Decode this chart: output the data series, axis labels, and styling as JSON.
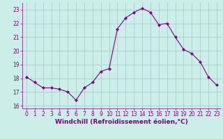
{
  "x": [
    0,
    1,
    2,
    3,
    4,
    5,
    6,
    7,
    8,
    9,
    10,
    11,
    12,
    13,
    14,
    15,
    16,
    17,
    18,
    19,
    20,
    21,
    22,
    23
  ],
  "y": [
    18.1,
    17.7,
    17.3,
    17.3,
    17.2,
    17.0,
    16.4,
    17.3,
    17.7,
    18.5,
    18.7,
    21.6,
    22.4,
    22.8,
    23.1,
    22.8,
    21.9,
    22.0,
    21.0,
    20.1,
    19.8,
    19.2,
    18.1,
    17.5
  ],
  "line_color": "#800080",
  "marker": "D",
  "marker_size": 2,
  "bg_color": "#cceee8",
  "grid_color": "#aacccc",
  "xlabel": "Windchill (Refroidissement éolien,°C)",
  "xlabel_color": "#800080",
  "tick_color": "#800080",
  "ylim": [
    15.8,
    23.5
  ],
  "yticks": [
    16,
    17,
    18,
    19,
    20,
    21,
    22,
    23
  ],
  "xlim": [
    -0.5,
    23.5
  ],
  "xticks": [
    0,
    1,
    2,
    3,
    4,
    5,
    6,
    7,
    8,
    9,
    10,
    11,
    12,
    13,
    14,
    15,
    16,
    17,
    18,
    19,
    20,
    21,
    22,
    23
  ],
  "tick_fontsize": 5.5,
  "xlabel_fontsize": 6.5
}
